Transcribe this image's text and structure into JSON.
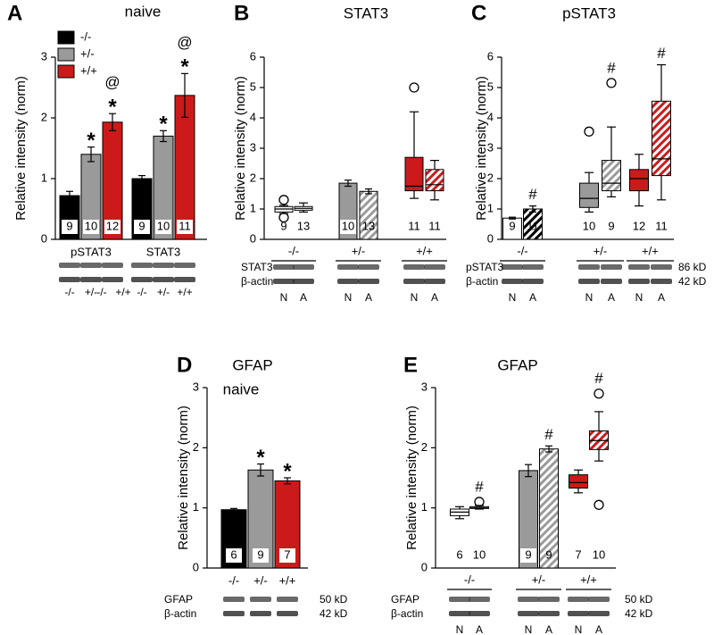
{
  "chart_data": [
    {
      "panel": "A",
      "type": "bar",
      "title": "naive",
      "y_label": "Relative intensity (norm)",
      "ylim": [
        0,
        3
      ],
      "yticks": [
        0,
        1,
        2,
        3
      ],
      "categories": [
        "pSTAT3",
        "STAT3"
      ],
      "series": [
        {
          "name": "-/-",
          "color": "#000000",
          "values": [
            0.72,
            1.0
          ],
          "errors": [
            0.07,
            0.05
          ],
          "n": [
            9,
            9
          ],
          "annotations": [
            [],
            []
          ]
        },
        {
          "name": "+/-",
          "color": "#9a9a9a",
          "values": [
            1.4,
            1.7
          ],
          "errors": [
            0.12,
            0.09
          ],
          "n": [
            10,
            10
          ],
          "annotations": [
            [
              "*"
            ],
            [
              "*"
            ]
          ]
        },
        {
          "name": "+/+",
          "color": "#cc1a1a",
          "values": [
            1.93,
            2.37
          ],
          "errors": [
            0.14,
            0.36
          ],
          "n": [
            12,
            11
          ],
          "annotations": [
            [
              "*",
              "@"
            ],
            [
              "*",
              "@"
            ]
          ]
        }
      ],
      "blot_labels": [
        "-/-",
        "+/-",
        "-/-",
        "+/+",
        "-/-",
        "+/-",
        "+/+"
      ]
    },
    {
      "panel": "B",
      "type": "box",
      "title": "STAT3",
      "y_label": "Relative intensity (norm)",
      "ylim": [
        0,
        6
      ],
      "yticks": [
        0,
        1,
        2,
        3,
        4,
        5,
        6
      ],
      "groups": [
        "-/-",
        "+/-",
        "+/+"
      ],
      "conditions": [
        "N",
        "A"
      ],
      "items": [
        {
          "kind": "box",
          "color": "#ffffff",
          "hatch": false,
          "whislo": 0.85,
          "q1": 0.9,
          "med": 1.0,
          "q3": 1.08,
          "whishi": 1.12,
          "fliers": [
            1.3,
            0.72
          ],
          "n": 9
        },
        {
          "kind": "box",
          "color": "#ffffff",
          "hatch": false,
          "whislo": 0.9,
          "q1": 0.96,
          "med": 1.02,
          "q3": 1.08,
          "whishi": 1.2,
          "fliers": [],
          "n": 13
        },
        {
          "kind": "bar",
          "color": "#9a9a9a",
          "hatch": false,
          "value": 1.85,
          "error": 0.1,
          "n": 10
        },
        {
          "kind": "bar",
          "color": "#9a9a9a",
          "hatch": true,
          "value": 1.58,
          "error": 0.08,
          "n": 13
        },
        {
          "kind": "box",
          "color": "#cc1a1a",
          "hatch": false,
          "whislo": 1.35,
          "q1": 1.6,
          "med": 1.75,
          "q3": 2.7,
          "whishi": 4.2,
          "fliers": [
            5.0
          ],
          "n": 11
        },
        {
          "kind": "box",
          "color": "#cc1a1a",
          "hatch": true,
          "whislo": 1.3,
          "q1": 1.6,
          "med": 1.8,
          "q3": 2.3,
          "whishi": 2.6,
          "fliers": [],
          "n": 11
        }
      ],
      "blot_rows": [
        "STAT3",
        "β-actin"
      ]
    },
    {
      "panel": "C",
      "type": "box",
      "title": "pSTAT3",
      "y_label": "Relative intensity (norm)",
      "ylim": [
        0,
        6
      ],
      "yticks": [
        0,
        1,
        2,
        3,
        4,
        5,
        6
      ],
      "groups": [
        "-/-",
        "+/-",
        "+/+"
      ],
      "conditions": [
        "N",
        "A"
      ],
      "items": [
        {
          "kind": "bar",
          "color": "#ffffff",
          "hatch": false,
          "value": 0.7,
          "error": 0.03,
          "n": 9
        },
        {
          "kind": "bar",
          "color": "#000000",
          "hatch": true,
          "value": 1.0,
          "error": 0.1,
          "n": 11,
          "annotation": "#"
        },
        {
          "kind": "box",
          "color": "#9a9a9a",
          "hatch": false,
          "whislo": 0.9,
          "q1": 1.05,
          "med": 1.35,
          "q3": 1.85,
          "whishi": 2.2,
          "fliers": [
            3.55
          ],
          "n": 10
        },
        {
          "kind": "box",
          "color": "#9a9a9a",
          "hatch": true,
          "whislo": 1.4,
          "q1": 1.6,
          "med": 1.85,
          "q3": 2.6,
          "whishi": 3.7,
          "fliers": [
            5.15
          ],
          "n": 9,
          "annotation": "#"
        },
        {
          "kind": "box",
          "color": "#cc1a1a",
          "hatch": false,
          "whislo": 1.1,
          "q1": 1.6,
          "med": 2.0,
          "q3": 2.3,
          "whishi": 2.8,
          "fliers": [],
          "n": 12
        },
        {
          "kind": "box",
          "color": "#cc1a1a",
          "hatch": true,
          "whislo": 1.3,
          "q1": 2.1,
          "med": 2.65,
          "q3": 4.55,
          "whishi": 5.75,
          "fliers": [],
          "n": 11,
          "annotation": "#"
        }
      ],
      "blot_rows": [
        "pSTAT3",
        "β-actin"
      ],
      "blot_sizes": [
        "86 kD",
        "42 kD"
      ]
    },
    {
      "panel": "D",
      "type": "bar",
      "title": "GFAP",
      "subtitle": "naive",
      "y_label": "Relative intensity (norm)",
      "ylim": [
        0,
        3
      ],
      "yticks": [
        0,
        1,
        2,
        3
      ],
      "categories": [
        "-/-",
        "+/-",
        "+/+"
      ],
      "values": [
        0.97,
        1.63,
        1.45
      ],
      "errors": [
        0.02,
        0.1,
        0.05
      ],
      "colors": [
        "#000000",
        "#9a9a9a",
        "#cc1a1a"
      ],
      "n": [
        6,
        9,
        7
      ],
      "annotations": [
        [],
        [
          "*"
        ],
        [
          "*"
        ]
      ],
      "blot_rows": [
        "GFAP",
        "β-actin"
      ],
      "blot_sizes": [
        "50 kD",
        "42 kD"
      ]
    },
    {
      "panel": "E",
      "type": "box",
      "title": "GFAP",
      "y_label": "Relative intensity (norm)",
      "ylim": [
        0,
        3
      ],
      "yticks": [
        0,
        1,
        2,
        3
      ],
      "groups": [
        "-/-",
        "+/-",
        "+/+"
      ],
      "conditions": [
        "N",
        "A"
      ],
      "items": [
        {
          "kind": "box",
          "color": "#ffffff",
          "hatch": false,
          "whislo": 0.82,
          "q1": 0.87,
          "med": 0.93,
          "q3": 0.98,
          "whishi": 1.02,
          "fliers": [],
          "n": 6
        },
        {
          "kind": "box",
          "color": "#ffffff",
          "hatch": false,
          "whislo": 0.98,
          "q1": 0.99,
          "med": 1.0,
          "q3": 1.02,
          "whishi": 1.04,
          "fliers": [
            1.1
          ],
          "n": 10,
          "annotation": "#"
        },
        {
          "kind": "bar",
          "color": "#9a9a9a",
          "hatch": false,
          "value": 1.62,
          "error": 0.1,
          "n": 9
        },
        {
          "kind": "bar",
          "color": "#9a9a9a",
          "hatch": true,
          "value": 1.98,
          "error": 0.05,
          "n": 9,
          "annotation": "#"
        },
        {
          "kind": "box",
          "color": "#cc1a1a",
          "hatch": false,
          "whislo": 1.25,
          "q1": 1.33,
          "med": 1.42,
          "q3": 1.55,
          "whishi": 1.63,
          "fliers": [],
          "n": 7
        },
        {
          "kind": "box",
          "color": "#cc1a1a",
          "hatch": true,
          "whislo": 1.78,
          "q1": 1.97,
          "med": 2.12,
          "q3": 2.28,
          "whishi": 2.6,
          "fliers": [
            2.9,
            1.05
          ],
          "n": 10,
          "annotation": "#"
        }
      ],
      "blot_rows": [
        "GFAP",
        "β-actin"
      ],
      "blot_sizes": [
        "50 kD",
        "42 kD"
      ]
    }
  ]
}
